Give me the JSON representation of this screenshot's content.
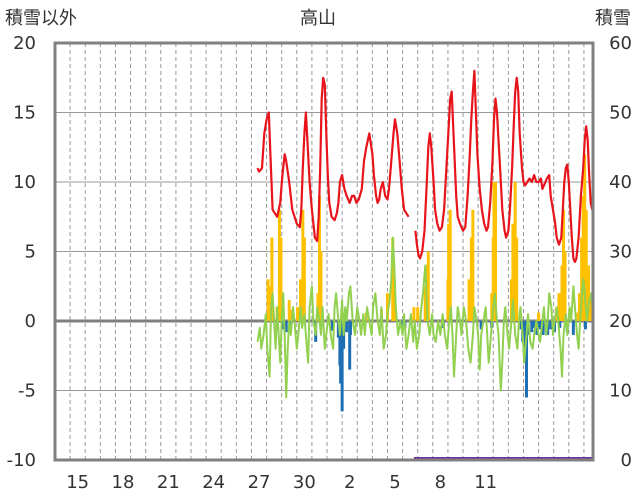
{
  "chart_data": {
    "type": "line",
    "title": "高山",
    "left_axis_label": "積雪以外",
    "right_axis_label": "積雪",
    "y_left": {
      "min": -10,
      "max": 20,
      "ticks": [
        "20",
        "15",
        "10",
        "5",
        "0",
        "-5",
        "-10"
      ]
    },
    "y_right": {
      "min": 0,
      "max": 60,
      "ticks": [
        "60",
        "50",
        "40",
        "30",
        "20",
        "10",
        "0"
      ]
    },
    "x_ticks": [
      "15",
      "18",
      "21",
      "24",
      "27",
      "30",
      "2",
      "5",
      "8",
      "11"
    ],
    "grid": true,
    "colors": {
      "red_line": "#e8141c",
      "green_line": "#92d050",
      "orange_bars": "#ffc000",
      "blue_bars": "#1f6fb4",
      "purple_line": "#7030a0",
      "frame": "#808080",
      "grid": "#999999"
    },
    "red_line_right_axis": [
      [
        26.9,
        42
      ],
      [
        27.0,
        41.5
      ],
      [
        27.2,
        42
      ],
      [
        27.35,
        47
      ],
      [
        27.5,
        49
      ],
      [
        27.65,
        50
      ],
      [
        27.75,
        44
      ],
      [
        27.9,
        36
      ],
      [
        28.2,
        35
      ],
      [
        28.4,
        37
      ],
      [
        28.55,
        41
      ],
      [
        28.7,
        44
      ],
      [
        28.8,
        43
      ],
      [
        29.0,
        40
      ],
      [
        29.2,
        36
      ],
      [
        29.5,
        34
      ],
      [
        29.7,
        33.5
      ],
      [
        29.8,
        36
      ],
      [
        29.9,
        42
      ],
      [
        30.0,
        47
      ],
      [
        30.1,
        50
      ],
      [
        30.2,
        46
      ],
      [
        30.35,
        40
      ],
      [
        30.5,
        36
      ],
      [
        30.6,
        34
      ],
      [
        30.7,
        32
      ],
      [
        30.85,
        31.5
      ],
      [
        30.95,
        35
      ],
      [
        31.05,
        42
      ],
      [
        31.15,
        52
      ],
      [
        31.25,
        55
      ],
      [
        31.35,
        54
      ],
      [
        31.45,
        47
      ],
      [
        31.55,
        41
      ],
      [
        31.65,
        37
      ],
      [
        31.8,
        35
      ],
      [
        32.0,
        34.5
      ],
      [
        32.15,
        35.5
      ],
      [
        32.25,
        37
      ],
      [
        32.35,
        40
      ],
      [
        32.5,
        41
      ],
      [
        32.65,
        39
      ],
      [
        32.8,
        38
      ],
      [
        33.0,
        37
      ],
      [
        33.15,
        38
      ],
      [
        33.3,
        38
      ],
      [
        33.45,
        37
      ],
      [
        33.6,
        37.5
      ],
      [
        33.8,
        39
      ],
      [
        33.95,
        43
      ],
      [
        34.1,
        45
      ],
      [
        34.3,
        47
      ],
      [
        34.5,
        44
      ],
      [
        34.6,
        41
      ],
      [
        34.75,
        38
      ],
      [
        34.85,
        37
      ],
      [
        34.95,
        37.5
      ],
      [
        35.05,
        39
      ],
      [
        35.2,
        40
      ],
      [
        35.35,
        38
      ],
      [
        35.5,
        37.5
      ],
      [
        35.6,
        39
      ],
      [
        35.75,
        43
      ],
      [
        35.9,
        47
      ],
      [
        36.0,
        49
      ],
      [
        36.15,
        47
      ],
      [
        36.3,
        43
      ],
      [
        36.45,
        39
      ],
      [
        36.6,
        36
      ],
      [
        36.75,
        35.5
      ],
      [
        36.9,
        35
      ],
      null,
      [
        37.35,
        33
      ],
      [
        37.45,
        31
      ],
      [
        37.55,
        29.5
      ],
      [
        37.65,
        29
      ],
      [
        37.8,
        30
      ],
      [
        37.95,
        33
      ],
      [
        38.1,
        40
      ],
      [
        38.2,
        45
      ],
      [
        38.3,
        47
      ],
      [
        38.4,
        45
      ],
      [
        38.55,
        40
      ],
      [
        38.65,
        36
      ],
      [
        38.8,
        34
      ],
      [
        38.95,
        33
      ],
      [
        39.1,
        33.5
      ],
      [
        39.25,
        36
      ],
      [
        39.4,
        42
      ],
      [
        39.55,
        48
      ],
      [
        39.65,
        52
      ],
      [
        39.75,
        53
      ],
      [
        39.85,
        48
      ],
      [
        39.95,
        43
      ],
      [
        40.05,
        38
      ],
      [
        40.15,
        35
      ],
      [
        40.3,
        34
      ],
      [
        40.5,
        33
      ],
      [
        40.65,
        33.5
      ],
      [
        40.8,
        38
      ],
      [
        40.95,
        44
      ],
      [
        41.05,
        49
      ],
      [
        41.15,
        53
      ],
      [
        41.25,
        56
      ],
      [
        41.35,
        50
      ],
      [
        41.45,
        44
      ],
      [
        41.6,
        39
      ],
      [
        41.75,
        36
      ],
      [
        41.9,
        34
      ],
      [
        42.05,
        33
      ],
      [
        42.15,
        33.5
      ],
      [
        42.3,
        37
      ],
      [
        42.45,
        43
      ],
      [
        42.55,
        49
      ],
      [
        42.65,
        52
      ],
      [
        42.75,
        50
      ],
      [
        42.85,
        46
      ],
      [
        42.95,
        42
      ],
      [
        43.1,
        36
      ],
      [
        43.25,
        33
      ],
      [
        43.35,
        32
      ],
      [
        43.5,
        33
      ],
      [
        43.6,
        36
      ],
      [
        43.75,
        42
      ],
      [
        43.85,
        48
      ],
      [
        43.95,
        53
      ],
      [
        44.05,
        55
      ],
      [
        44.15,
        53
      ],
      [
        44.25,
        47
      ],
      [
        44.4,
        42
      ],
      [
        44.5,
        40
      ],
      [
        44.6,
        39.5
      ],
      [
        44.75,
        40
      ],
      [
        44.9,
        40.5
      ],
      [
        45.05,
        40
      ],
      [
        45.2,
        41
      ],
      [
        45.35,
        40
      ],
      [
        45.5,
        40
      ],
      [
        45.65,
        40.5
      ],
      [
        45.75,
        39
      ],
      [
        45.85,
        39.5
      ],
      [
        45.95,
        40
      ],
      [
        46.05,
        40.5
      ],
      [
        46.2,
        41
      ],
      [
        46.3,
        38
      ],
      [
        46.45,
        36
      ],
      [
        46.6,
        34
      ],
      [
        46.7,
        32
      ],
      [
        46.85,
        31
      ],
      [
        47.0,
        32
      ],
      [
        47.1,
        36
      ],
      [
        47.2,
        40
      ],
      [
        47.3,
        42
      ],
      [
        47.4,
        42.5
      ],
      [
        47.5,
        40
      ],
      [
        47.6,
        36
      ],
      [
        47.7,
        32
      ],
      [
        47.8,
        29
      ],
      [
        47.9,
        28.5
      ],
      [
        48.0,
        29
      ],
      [
        48.15,
        32
      ],
      [
        48.3,
        38
      ],
      [
        48.45,
        42
      ],
      [
        48.55,
        46
      ],
      [
        48.65,
        48
      ],
      [
        48.75,
        46
      ],
      [
        48.85,
        41
      ],
      [
        48.95,
        37
      ],
      [
        49.05,
        36
      ]
    ],
    "green_line_left_axis": [
      [
        26.9,
        -1.5
      ],
      [
        27.05,
        -0.5
      ],
      [
        27.15,
        -2
      ],
      [
        27.3,
        -1
      ],
      [
        27.45,
        0.5
      ],
      [
        27.55,
        -2
      ],
      [
        27.7,
        -4
      ],
      [
        27.8,
        1
      ],
      [
        27.9,
        2
      ],
      [
        28.0,
        0
      ],
      [
        28.1,
        -2
      ],
      [
        28.2,
        1
      ],
      [
        28.3,
        -1
      ],
      [
        28.4,
        -3
      ],
      [
        28.5,
        0
      ],
      [
        28.6,
        2
      ],
      [
        28.7,
        -1
      ],
      [
        28.8,
        -5.5
      ],
      [
        28.9,
        -2
      ],
      [
        29.0,
        0
      ],
      [
        29.1,
        -1
      ],
      [
        29.25,
        1
      ],
      [
        29.35,
        0
      ],
      [
        29.5,
        -2
      ],
      [
        29.6,
        -1
      ],
      [
        29.75,
        1
      ],
      [
        29.85,
        -0.5
      ],
      [
        30.0,
        0.5
      ],
      [
        30.1,
        -1
      ],
      [
        30.25,
        -3
      ],
      [
        30.35,
        1
      ],
      [
        30.5,
        2.5
      ],
      [
        30.6,
        0
      ],
      [
        30.75,
        -1
      ],
      [
        30.85,
        1
      ],
      [
        31.0,
        0
      ],
      [
        31.1,
        -1
      ],
      [
        31.2,
        1
      ],
      [
        31.35,
        -2
      ],
      [
        31.45,
        -1
      ],
      [
        31.6,
        0.5
      ],
      [
        31.75,
        -1
      ],
      [
        31.9,
        -2
      ],
      [
        32.0,
        1
      ],
      [
        32.1,
        2
      ],
      [
        32.25,
        0
      ],
      [
        32.35,
        -1
      ],
      [
        32.5,
        1.5
      ],
      [
        32.6,
        -1
      ],
      [
        32.7,
        1
      ],
      [
        32.8,
        0
      ],
      [
        32.95,
        2
      ],
      [
        33.05,
        2.5
      ],
      [
        33.2,
        0
      ],
      [
        33.35,
        -1
      ],
      [
        33.5,
        1
      ],
      [
        33.65,
        0
      ],
      [
        33.75,
        -1
      ],
      [
        33.9,
        0.5
      ],
      [
        34.0,
        -1
      ],
      [
        34.15,
        1
      ],
      [
        34.3,
        0
      ],
      [
        34.45,
        -1
      ],
      [
        34.55,
        1
      ],
      [
        34.7,
        2
      ],
      [
        34.85,
        0
      ],
      [
        35.0,
        -1
      ],
      [
        35.1,
        1
      ],
      [
        35.25,
        -2
      ],
      [
        35.4,
        -1
      ],
      [
        35.5,
        0.5
      ],
      [
        35.65,
        1.5
      ],
      [
        35.75,
        3
      ],
      [
        35.85,
        6
      ],
      [
        35.95,
        4
      ],
      [
        36.05,
        1
      ],
      [
        36.2,
        -1
      ],
      [
        36.35,
        0
      ],
      [
        36.5,
        -1
      ],
      [
        36.6,
        0.5
      ],
      [
        36.75,
        -2
      ],
      [
        36.9,
        -1
      ],
      [
        37.05,
        0.5
      ],
      [
        37.2,
        -1.5
      ],
      [
        37.3,
        0
      ],
      [
        37.45,
        -2
      ],
      [
        37.6,
        -1
      ],
      [
        37.7,
        0.5
      ],
      [
        37.85,
        2
      ],
      [
        38.0,
        4
      ],
      [
        38.15,
        0
      ],
      [
        38.3,
        -1
      ],
      [
        38.45,
        0.5
      ],
      [
        38.55,
        -1
      ],
      [
        38.7,
        -1.5
      ],
      [
        38.85,
        0
      ],
      [
        39.0,
        -1
      ],
      [
        39.15,
        0.5
      ],
      [
        39.3,
        -1
      ],
      [
        39.45,
        -2
      ],
      [
        39.55,
        -0.5
      ],
      [
        39.7,
        1
      ],
      [
        39.8,
        -1
      ],
      [
        39.9,
        -4
      ],
      [
        40.05,
        -1
      ],
      [
        40.15,
        1
      ],
      [
        40.3,
        0
      ],
      [
        40.4,
        -1
      ],
      [
        40.55,
        1
      ],
      [
        40.7,
        0
      ],
      [
        40.85,
        -2
      ],
      [
        41.0,
        -3
      ],
      [
        41.15,
        -1
      ],
      [
        41.25,
        1
      ],
      [
        41.4,
        0
      ],
      [
        41.5,
        -1
      ],
      [
        41.6,
        -3.5
      ],
      [
        41.7,
        -1
      ],
      [
        41.85,
        0
      ],
      [
        42.0,
        1
      ],
      [
        42.1,
        -1
      ],
      [
        42.2,
        -3
      ],
      [
        42.35,
        -1
      ],
      [
        42.5,
        1
      ],
      [
        42.6,
        2
      ],
      [
        42.75,
        0
      ],
      [
        42.85,
        -1
      ],
      [
        43.0,
        -5
      ],
      [
        43.1,
        -3
      ],
      [
        43.2,
        0
      ],
      [
        43.3,
        1
      ],
      [
        43.45,
        -1
      ],
      [
        43.55,
        -2
      ],
      [
        43.7,
        0
      ],
      [
        43.8,
        1.5
      ],
      [
        43.95,
        -1
      ],
      [
        44.1,
        -2
      ],
      [
        44.2,
        0
      ],
      [
        44.3,
        1
      ],
      [
        44.45,
        -1
      ],
      [
        44.55,
        -3
      ],
      [
        44.7,
        -1
      ],
      [
        44.8,
        0.5
      ],
      [
        44.95,
        -1.5
      ],
      [
        45.1,
        -2
      ],
      [
        45.2,
        -1
      ],
      [
        45.35,
        0
      ],
      [
        45.5,
        -1
      ],
      [
        45.6,
        -1.5
      ],
      [
        45.75,
        0
      ],
      [
        45.85,
        1
      ],
      [
        46.0,
        -1
      ],
      [
        46.1,
        0
      ],
      [
        46.2,
        2
      ],
      [
        46.35,
        1
      ],
      [
        46.45,
        -1
      ],
      [
        46.55,
        0
      ],
      [
        46.7,
        1
      ],
      [
        46.8,
        0
      ],
      [
        46.95,
        -2
      ],
      [
        47.05,
        -4
      ],
      [
        47.15,
        -1
      ],
      [
        47.3,
        0.5
      ],
      [
        47.4,
        -1
      ],
      [
        47.55,
        1
      ],
      [
        47.65,
        0
      ],
      [
        47.8,
        2.5
      ],
      [
        47.9,
        1
      ],
      [
        48.05,
        -1
      ],
      [
        48.15,
        -2
      ],
      [
        48.3,
        1
      ],
      [
        48.45,
        3
      ],
      [
        48.55,
        2
      ],
      [
        48.7,
        0
      ],
      [
        48.85,
        1.5
      ],
      [
        49.0,
        2
      ],
      [
        49.05,
        1
      ]
    ],
    "orange_bars_left_axis": [
      [
        27.6,
        3
      ],
      [
        27.7,
        2.5
      ],
      [
        27.85,
        6
      ],
      [
        28.2,
        1
      ],
      [
        28.35,
        8
      ],
      [
        28.45,
        6
      ],
      [
        29.0,
        1.5
      ],
      [
        29.1,
        0.8
      ],
      [
        29.55,
        1
      ],
      [
        29.75,
        3
      ],
      [
        29.9,
        8
      ],
      [
        30.0,
        6
      ],
      [
        30.9,
        2
      ],
      [
        31.0,
        9
      ],
      [
        31.1,
        5
      ],
      [
        32.6,
        0.6
      ],
      [
        34.1,
        0.6
      ],
      [
        35.1,
        0.8
      ],
      [
        35.5,
        2
      ],
      [
        35.85,
        6
      ],
      [
        35.95,
        3
      ],
      [
        37.25,
        1
      ],
      [
        37.5,
        1
      ],
      [
        38.0,
        2.5
      ],
      [
        38.1,
        4
      ],
      [
        38.2,
        5
      ],
      [
        39.5,
        3
      ],
      [
        39.55,
        7
      ],
      [
        39.65,
        8
      ],
      [
        40.9,
        3
      ],
      [
        41.05,
        6
      ],
      [
        41.15,
        8
      ],
      [
        42.4,
        2
      ],
      [
        42.5,
        6
      ],
      [
        42.55,
        10
      ],
      [
        42.65,
        10
      ],
      [
        43.7,
        3
      ],
      [
        43.8,
        7
      ],
      [
        43.95,
        10
      ],
      [
        44.05,
        6
      ],
      [
        45.5,
        0.6
      ],
      [
        46.7,
        1
      ],
      [
        46.85,
        2
      ],
      [
        47.05,
        4
      ],
      [
        47.15,
        8
      ],
      [
        47.25,
        5
      ],
      [
        48.0,
        0.6
      ],
      [
        48.2,
        2
      ],
      [
        48.35,
        6
      ],
      [
        48.45,
        9
      ],
      [
        48.55,
        12
      ],
      [
        48.65,
        8
      ],
      [
        48.8,
        4
      ],
      [
        48.95,
        2
      ]
    ],
    "blue_bars_left_axis": [
      [
        28.55,
        -0.6
      ],
      [
        28.8,
        -0.8
      ],
      [
        29.1,
        -0.6
      ],
      [
        30.75,
        -1.5
      ],
      [
        31.85,
        -0.7
      ],
      [
        32.25,
        -1.2
      ],
      [
        32.35,
        -3.2
      ],
      [
        32.4,
        -4.5
      ],
      [
        32.5,
        -6.5
      ],
      [
        32.6,
        -2
      ],
      [
        32.8,
        -0.8
      ],
      [
        33.0,
        -3.5
      ],
      [
        33.05,
        -1
      ],
      [
        36.5,
        -0.6
      ],
      [
        36.65,
        -0.5
      ],
      [
        39.2,
        -0.5
      ],
      [
        41.7,
        -0.6
      ],
      [
        42.4,
        -0.5
      ],
      [
        44.35,
        -0.6
      ],
      [
        44.45,
        -1.5
      ],
      [
        44.6,
        -2.5
      ],
      [
        44.7,
        -5.5
      ],
      [
        44.8,
        -1
      ],
      [
        45.05,
        -0.8
      ],
      [
        45.2,
        -0.5
      ],
      [
        45.4,
        -1
      ],
      [
        45.6,
        -0.6
      ],
      [
        45.8,
        -1
      ],
      [
        46.1,
        -1
      ],
      [
        46.3,
        -0.6
      ],
      [
        46.55,
        -0.8
      ],
      [
        46.9,
        -0.5
      ],
      [
        47.4,
        -0.8
      ],
      [
        47.8,
        -1
      ],
      [
        48.6,
        -0.6
      ]
    ],
    "purple_line_right_axis": [
      [
        37.25,
        0
      ],
      [
        49.05,
        0
      ]
    ]
  }
}
